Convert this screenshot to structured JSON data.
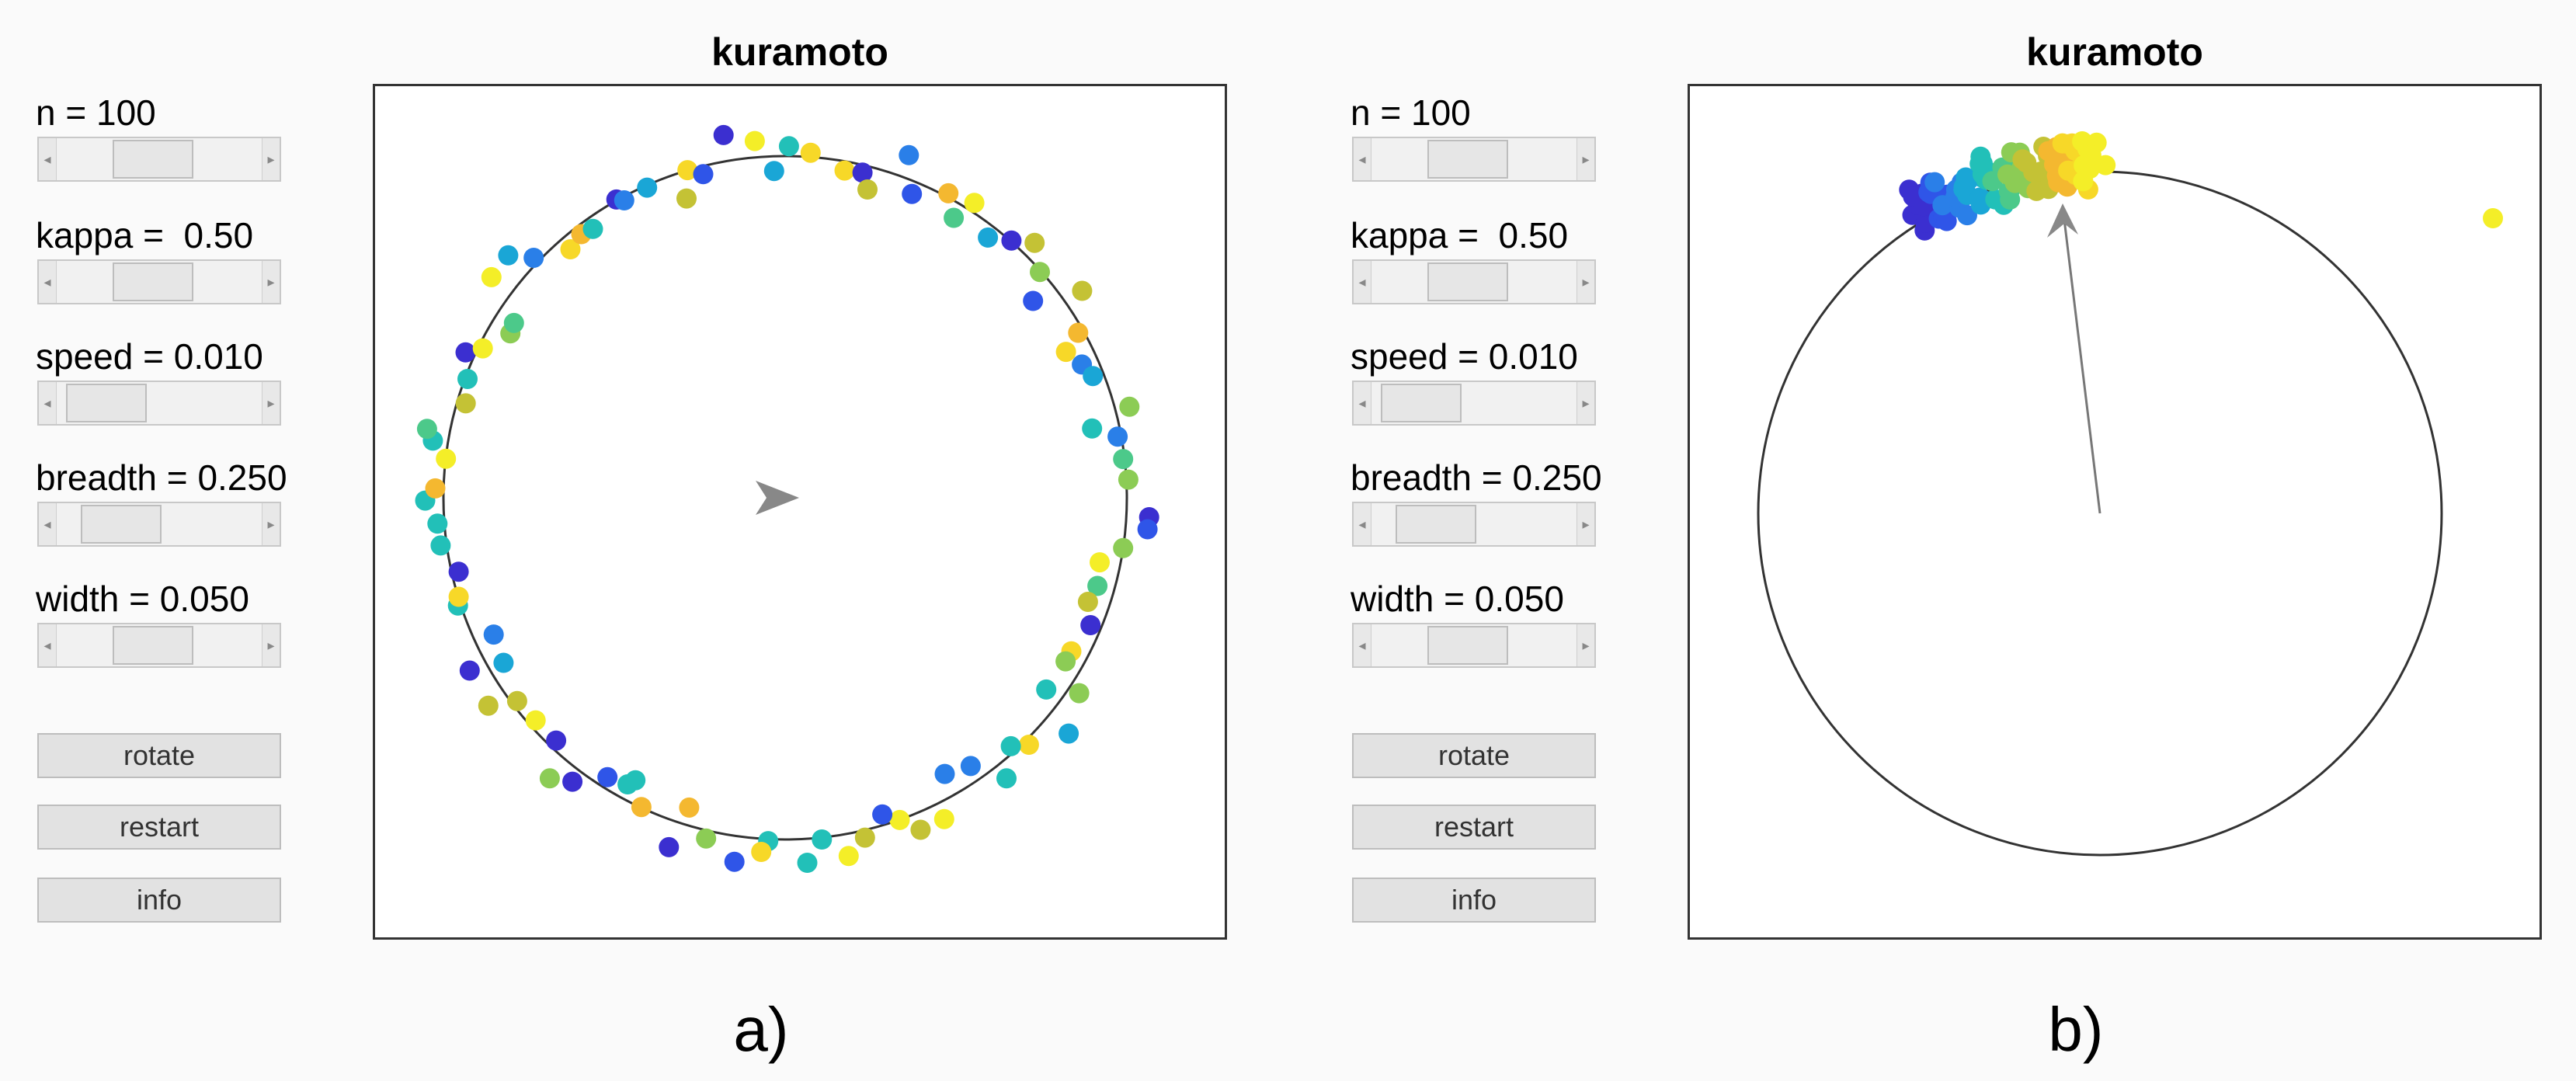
{
  "panels": [
    {
      "id": "a",
      "title": "kuramoto",
      "caption": "a)",
      "controls": [
        {
          "label": "n = 100",
          "level": 0.45
        },
        {
          "label": "kappa =  0.50",
          "level": 0.45
        },
        {
          "label": "speed = 0.010",
          "level": 0.08
        },
        {
          "label": "breadth = 0.250",
          "level": 0.2
        },
        {
          "label": "width = 0.050",
          "level": 0.45
        }
      ],
      "buttons": [
        "rotate",
        "restart",
        "info"
      ]
    },
    {
      "id": "b",
      "title": "kuramoto",
      "caption": "b)",
      "controls": [
        {
          "label": "n = 100",
          "level": 0.45
        },
        {
          "label": "kappa =  0.50",
          "level": 0.45
        },
        {
          "label": "speed = 0.010",
          "level": 0.08
        },
        {
          "label": "breadth = 0.250",
          "level": 0.2
        },
        {
          "label": "width = 0.050",
          "level": 0.45
        }
      ],
      "buttons": [
        "rotate",
        "restart",
        "info"
      ]
    }
  ],
  "icons": [
    "arrowhead-icon",
    "scroll-left-arrow-icon",
    "scroll-right-arrow-icon"
  ],
  "colors": {
    "circle": "#333333",
    "arrow": "#888888",
    "palette": [
      "#3b2fd0",
      "#2f55e8",
      "#2a7fe8",
      "#1aa6d6",
      "#22c0b8",
      "#4cc98a",
      "#8ccc55",
      "#c4c235",
      "#f4b830",
      "#f7d828",
      "#f4ee28"
    ]
  }
}
